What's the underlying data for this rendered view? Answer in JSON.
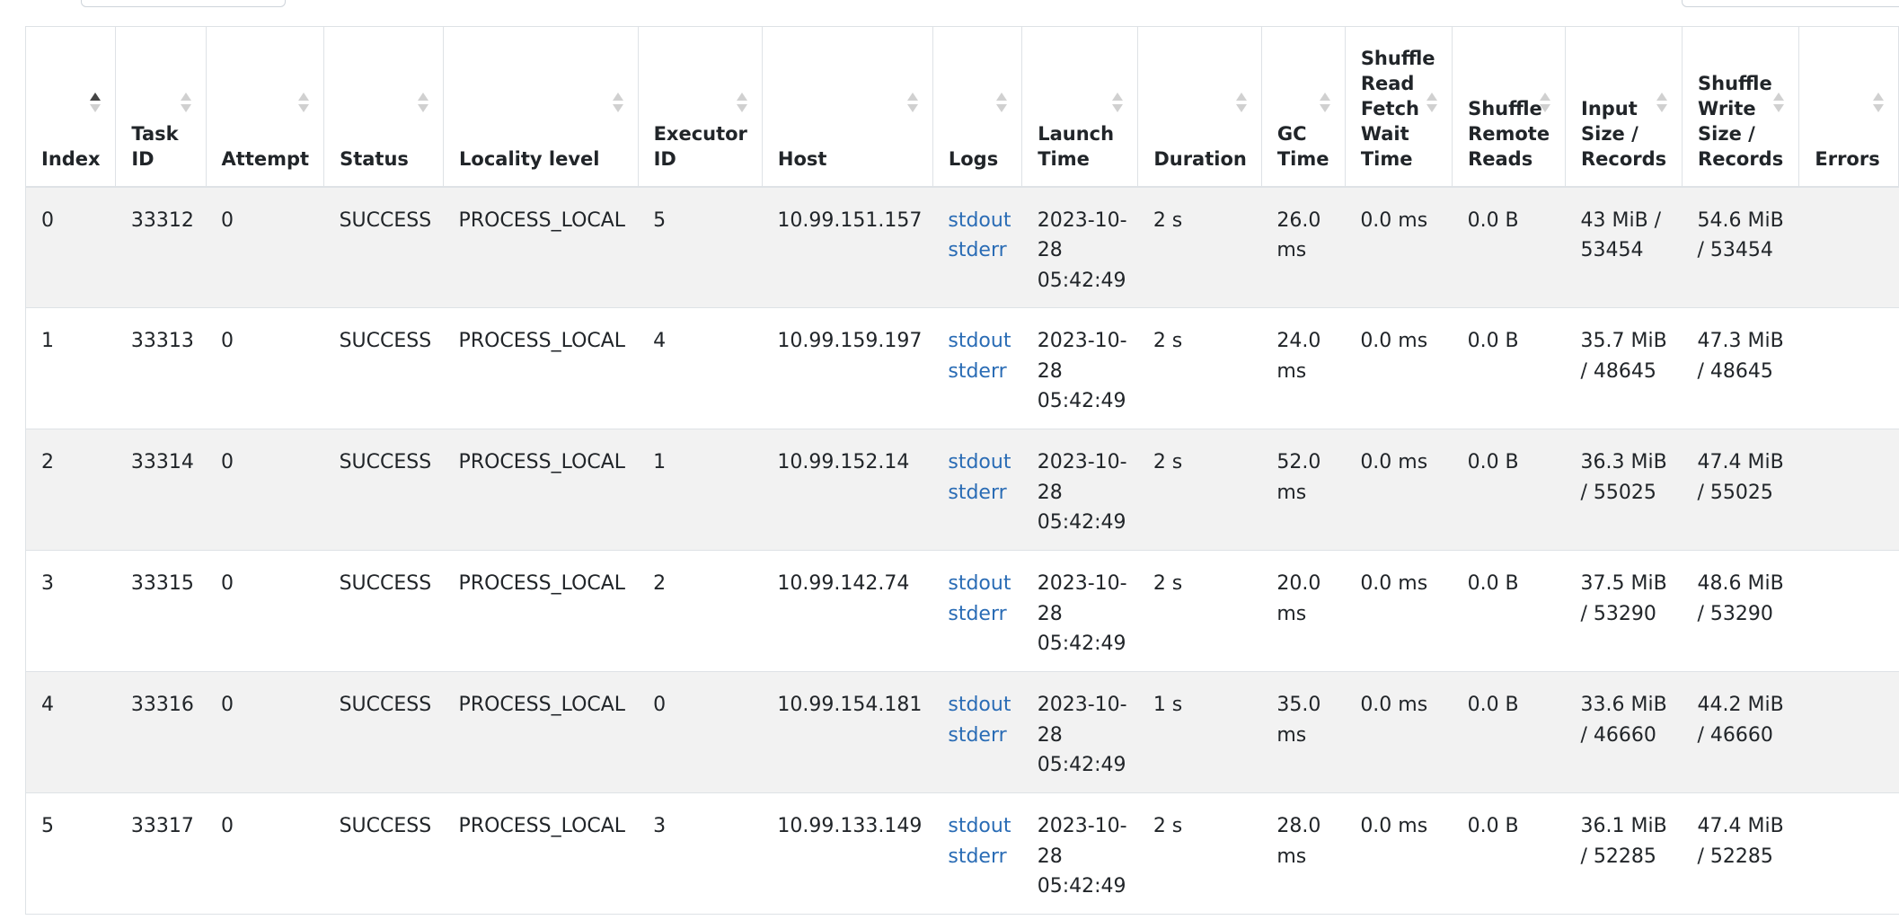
{
  "table": {
    "columns": [
      {
        "key": "index",
        "label": "Index",
        "sorted": true
      },
      {
        "key": "task_id",
        "label": "Task ID"
      },
      {
        "key": "attempt",
        "label": "Attempt"
      },
      {
        "key": "status",
        "label": "Status"
      },
      {
        "key": "locality",
        "label": "Locality level"
      },
      {
        "key": "executor",
        "label": "Executor ID"
      },
      {
        "key": "host",
        "label": "Host"
      },
      {
        "key": "logs",
        "label": "Logs"
      },
      {
        "key": "launch",
        "label": "Launch Time"
      },
      {
        "key": "duration",
        "label": "Duration"
      },
      {
        "key": "gc",
        "label": "GC Time"
      },
      {
        "key": "fetch_wait",
        "label": "Shuffle Read Fetch Wait Time"
      },
      {
        "key": "remote_reads",
        "label": "Shuffle Remote Reads"
      },
      {
        "key": "input",
        "label": "Input Size / Records"
      },
      {
        "key": "shuffle_write",
        "label": "Shuffle Write Size / Records"
      },
      {
        "key": "errors",
        "label": "Errors"
      }
    ],
    "rows": [
      {
        "index": "0",
        "task_id": "33312",
        "attempt": "0",
        "status": "SUCCESS",
        "locality": "PROCESS_LOCAL",
        "executor": "5",
        "host": "10.99.151.157",
        "log_stdout": "stdout",
        "log_stderr": "stderr",
        "launch": "2023-10-28 05:42:49",
        "duration": "2 s",
        "gc": "26.0 ms",
        "fetch_wait": "0.0 ms",
        "remote_reads": "0.0 B",
        "input": "43 MiB / 53454",
        "shuffle_write": "54.6 MiB / 53454",
        "errors": ""
      },
      {
        "index": "1",
        "task_id": "33313",
        "attempt": "0",
        "status": "SUCCESS",
        "locality": "PROCESS_LOCAL",
        "executor": "4",
        "host": "10.99.159.197",
        "log_stdout": "stdout",
        "log_stderr": "stderr",
        "launch": "2023-10-28 05:42:49",
        "duration": "2 s",
        "gc": "24.0 ms",
        "fetch_wait": "0.0 ms",
        "remote_reads": "0.0 B",
        "input": "35.7 MiB / 48645",
        "shuffle_write": "47.3 MiB / 48645",
        "errors": ""
      },
      {
        "index": "2",
        "task_id": "33314",
        "attempt": "0",
        "status": "SUCCESS",
        "locality": "PROCESS_LOCAL",
        "executor": "1",
        "host": "10.99.152.14",
        "log_stdout": "stdout",
        "log_stderr": "stderr",
        "launch": "2023-10-28 05:42:49",
        "duration": "2 s",
        "gc": "52.0 ms",
        "fetch_wait": "0.0 ms",
        "remote_reads": "0.0 B",
        "input": "36.3 MiB / 55025",
        "shuffle_write": "47.4 MiB / 55025",
        "errors": ""
      },
      {
        "index": "3",
        "task_id": "33315",
        "attempt": "0",
        "status": "SUCCESS",
        "locality": "PROCESS_LOCAL",
        "executor": "2",
        "host": "10.99.142.74",
        "log_stdout": "stdout",
        "log_stderr": "stderr",
        "launch": "2023-10-28 05:42:49",
        "duration": "2 s",
        "gc": "20.0 ms",
        "fetch_wait": "0.0 ms",
        "remote_reads": "0.0 B",
        "input": "37.5 MiB / 53290",
        "shuffle_write": "48.6 MiB / 53290",
        "errors": ""
      },
      {
        "index": "4",
        "task_id": "33316",
        "attempt": "0",
        "status": "SUCCESS",
        "locality": "PROCESS_LOCAL",
        "executor": "0",
        "host": "10.99.154.181",
        "log_stdout": "stdout",
        "log_stderr": "stderr",
        "launch": "2023-10-28 05:42:49",
        "duration": "1 s",
        "gc": "35.0 ms",
        "fetch_wait": "0.0 ms",
        "remote_reads": "0.0 B",
        "input": "33.6 MiB / 46660",
        "shuffle_write": "44.2 MiB / 46660",
        "errors": ""
      },
      {
        "index": "5",
        "task_id": "33317",
        "attempt": "0",
        "status": "SUCCESS",
        "locality": "PROCESS_LOCAL",
        "executor": "3",
        "host": "10.99.133.149",
        "log_stdout": "stdout",
        "log_stderr": "stderr",
        "launch": "2023-10-28 05:42:49",
        "duration": "2 s",
        "gc": "28.0 ms",
        "fetch_wait": "0.0 ms",
        "remote_reads": "0.0 B",
        "input": "36.1 MiB / 52285",
        "shuffle_write": "47.4 MiB / 52285",
        "errors": ""
      }
    ]
  },
  "colors": {
    "link": "#2a6cb5",
    "row_stripe": "#f2f2f2",
    "border": "#dee2e6"
  }
}
